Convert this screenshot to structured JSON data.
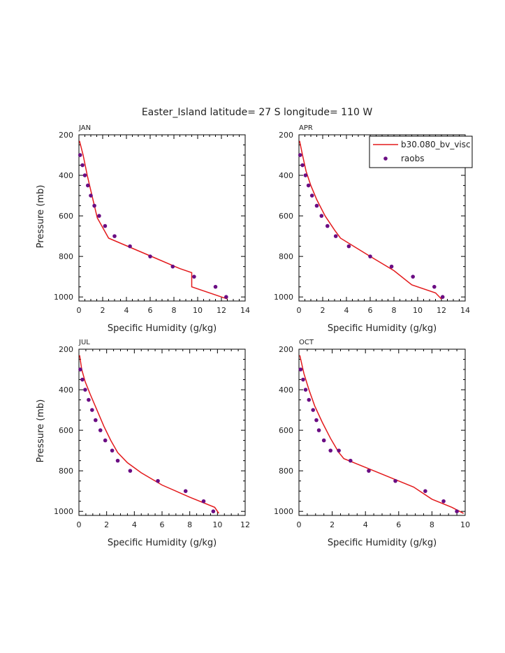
{
  "title": "Easter_Island  latitude= 27 S longitude= 110 W",
  "colors": {
    "model": "#e31a1c",
    "obs": "#6a0d83",
    "axis": "#000000"
  },
  "legend": {
    "model_label": "b30.080_bv_visc",
    "obs_label": "raobs",
    "position": "top-right of APR panel"
  },
  "chart_data": [
    {
      "type": "line",
      "panel": "JAN",
      "xlabel": "Specific Humidity (g/kg)",
      "ylabel": "Pressure (mb)",
      "xlim": [
        0,
        14
      ],
      "ylim": [
        200,
        1020
      ],
      "y_inverted": true,
      "xticks": [
        0,
        2,
        4,
        6,
        8,
        10,
        12,
        14
      ],
      "yticks": [
        200,
        400,
        600,
        800,
        1000
      ],
      "model": {
        "x": [
          0.05,
          0.35,
          0.7,
          1.1,
          1.55,
          2.5,
          4.5,
          6.5,
          8.5,
          9.5,
          9.5,
          12,
          12.5
        ],
        "y": [
          230,
          300,
          400,
          500,
          610,
          710,
          760,
          810,
          860,
          880,
          950,
          1000,
          1010
        ]
      },
      "obs": {
        "x": [
          0.1,
          0.3,
          0.5,
          0.75,
          1.0,
          1.3,
          1.7,
          2.2,
          3.0,
          4.3,
          6.0,
          7.9,
          9.7,
          11.5,
          12.4
        ],
        "y": [
          300,
          350,
          400,
          450,
          500,
          550,
          600,
          650,
          700,
          750,
          800,
          850,
          900,
          950,
          1000
        ]
      }
    },
    {
      "type": "line",
      "panel": "APR",
      "xlabel": "Specific Humidity (g/kg)",
      "ylabel": "",
      "xlim": [
        0,
        14
      ],
      "ylim": [
        200,
        1020
      ],
      "y_inverted": true,
      "xticks": [
        0,
        2,
        4,
        6,
        8,
        10,
        12,
        14
      ],
      "yticks": [
        200,
        400,
        600,
        800,
        1000
      ],
      "model": {
        "x": [
          0.05,
          0.3,
          0.6,
          1.0,
          1.5,
          2.2,
          3.0,
          3.5,
          6.0,
          8.0,
          9.5,
          11.5,
          12.0
        ],
        "y": [
          230,
          300,
          380,
          450,
          520,
          600,
          670,
          710,
          800,
          870,
          940,
          980,
          1010
        ]
      },
      "obs": {
        "x": [
          0.1,
          0.3,
          0.55,
          0.8,
          1.1,
          1.5,
          1.9,
          2.4,
          3.1,
          4.2,
          6.0,
          7.8,
          9.6,
          11.4,
          12.1
        ],
        "y": [
          300,
          350,
          400,
          450,
          500,
          550,
          600,
          650,
          700,
          750,
          800,
          850,
          900,
          950,
          1000
        ]
      }
    },
    {
      "type": "line",
      "panel": "JUL",
      "xlabel": "Specific Humidity (g/kg)",
      "ylabel": "Pressure (mb)",
      "xlim": [
        0,
        12
      ],
      "ylim": [
        200,
        1020
      ],
      "y_inverted": true,
      "xticks": [
        0,
        2,
        4,
        6,
        8,
        10,
        12
      ],
      "yticks": [
        200,
        400,
        600,
        800,
        1000
      ],
      "model": {
        "x": [
          0.05,
          0.2,
          0.45,
          0.8,
          1.3,
          1.8,
          2.3,
          2.8,
          3.5,
          4.5,
          6.0,
          8.0,
          9.8,
          10.1
        ],
        "y": [
          230,
          300,
          360,
          420,
          500,
          580,
          650,
          710,
          760,
          810,
          870,
          930,
          980,
          1010
        ]
      },
      "obs": {
        "x": [
          0.1,
          0.25,
          0.45,
          0.7,
          0.95,
          1.2,
          1.55,
          1.9,
          2.4,
          2.8,
          3.7,
          5.7,
          7.7,
          9.0,
          9.7
        ],
        "y": [
          300,
          350,
          400,
          450,
          500,
          550,
          600,
          650,
          700,
          750,
          800,
          850,
          900,
          950,
          1000
        ]
      }
    },
    {
      "type": "line",
      "panel": "OCT",
      "xlabel": "Specific Humidity (g/kg)",
      "ylabel": "",
      "xlim": [
        0,
        10
      ],
      "ylim": [
        200,
        1020
      ],
      "y_inverted": true,
      "xticks": [
        0,
        2,
        4,
        6,
        8,
        10
      ],
      "yticks": [
        200,
        400,
        600,
        800,
        1000
      ],
      "model": {
        "x": [
          0.05,
          0.3,
          0.6,
          0.95,
          1.4,
          1.9,
          2.4,
          2.7,
          4.5,
          6.9,
          8.0,
          9.2,
          9.9
        ],
        "y": [
          230,
          320,
          400,
          480,
          560,
          640,
          710,
          740,
          800,
          880,
          940,
          980,
          1010
        ]
      },
      "obs": {
        "x": [
          0.1,
          0.25,
          0.4,
          0.6,
          0.85,
          1.05,
          1.2,
          1.5,
          1.9,
          2.4,
          3.1,
          4.2,
          5.8,
          7.6,
          8.7,
          9.5
        ],
        "y": [
          300,
          350,
          400,
          450,
          500,
          550,
          600,
          650,
          700,
          700,
          750,
          800,
          850,
          900,
          950,
          1000
        ]
      }
    }
  ]
}
